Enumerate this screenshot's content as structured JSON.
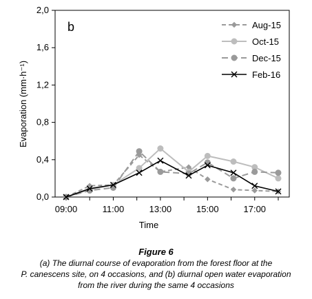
{
  "chart_data": {
    "type": "line",
    "panel_label": "b",
    "xlabel": "Time",
    "ylabel": "Evaporation (mm·h⁻¹)",
    "x_categories": [
      "09:00",
      "10:00",
      "11:00",
      "12:10",
      "13:00",
      "14:15",
      "15:00",
      "16:05",
      "17:00",
      "18:00"
    ],
    "x_tick_labels": [
      "09:00",
      "11:00",
      "13:00",
      "15:00",
      "17:00"
    ],
    "x_tick_positions": [
      0,
      2,
      4,
      6,
      8
    ],
    "x_positions": [
      0,
      1,
      2,
      3.1,
      4,
      5.2,
      6,
      7.1,
      8,
      9
    ],
    "ylim": [
      0,
      2.0
    ],
    "y_ticks": [
      "0,0",
      "0,4",
      "0,8",
      "1,2",
      "1,6",
      "2,0"
    ],
    "y_tick_values": [
      0,
      0.4,
      0.8,
      1.2,
      1.6,
      2.0
    ],
    "legend_position": "top-right",
    "series": [
      {
        "name": "Aug-15",
        "color": "#9a9a9a",
        "dash": "6,4",
        "marker": "diamond",
        "values": [
          0.0,
          0.12,
          0.13,
          0.45,
          0.27,
          0.32,
          0.19,
          0.08,
          0.07,
          0.06
        ]
      },
      {
        "name": "Oct-15",
        "color": "#bdbdbd",
        "dash": "",
        "marker": "circle",
        "values": [
          0.0,
          0.08,
          0.13,
          0.31,
          0.52,
          0.27,
          0.44,
          0.38,
          0.32,
          0.2
        ]
      },
      {
        "name": "Dec-15",
        "color": "#9a9a9a",
        "dash": "9,5",
        "marker": "circle",
        "values": [
          0.0,
          0.07,
          0.1,
          0.49,
          0.27,
          0.25,
          0.37,
          0.2,
          0.27,
          0.26
        ]
      },
      {
        "name": "Feb-16",
        "color": "#000000",
        "dash": "",
        "marker": "x",
        "values": [
          0.0,
          0.09,
          0.13,
          0.26,
          0.39,
          0.23,
          0.34,
          0.26,
          0.12,
          0.06
        ]
      }
    ]
  },
  "caption": {
    "figure_title": "Figure 6",
    "line1": "(a) The diurnal course of evaporation from the forest floor at the",
    "line2": "P. canescens site, on 4 occasions, and (b) diurnal open water evaporation",
    "line3": "from the river during the same 4 occasions"
  }
}
